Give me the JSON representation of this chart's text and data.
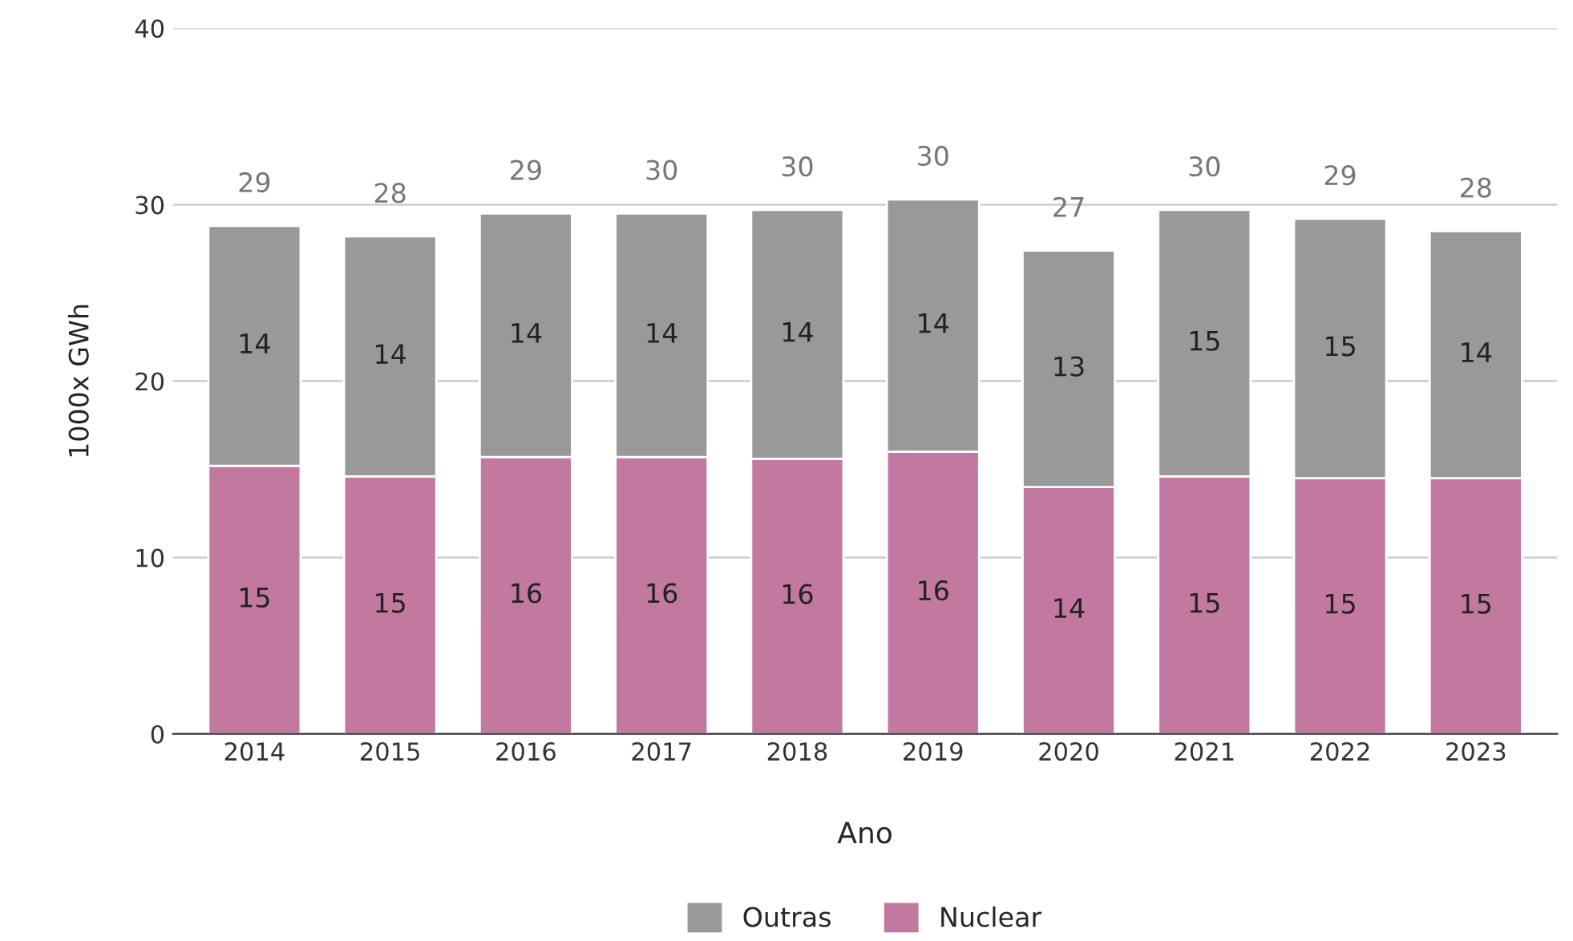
{
  "chart_data": {
    "type": "bar",
    "stacked": true,
    "xlabel": "Ano",
    "ylabel": "1000x GWh",
    "categories": [
      "2014",
      "2015",
      "2016",
      "2017",
      "2018",
      "2019",
      "2020",
      "2021",
      "2022",
      "2023"
    ],
    "series": [
      {
        "name": "Nuclear",
        "color": "#c2789f",
        "values": [
          15.2,
          14.6,
          15.7,
          15.7,
          15.6,
          16.0,
          14.0,
          14.6,
          14.5,
          14.5
        ],
        "value_labels": [
          "15",
          "15",
          "16",
          "16",
          "16",
          "16",
          "14",
          "15",
          "15",
          "15"
        ]
      },
      {
        "name": "Outras",
        "color": "#999999",
        "values": [
          13.6,
          13.6,
          13.8,
          13.8,
          14.1,
          14.3,
          13.4,
          15.1,
          14.7,
          14.0
        ],
        "value_labels": [
          "14",
          "14",
          "14",
          "14",
          "14",
          "14",
          "13",
          "15",
          "15",
          "14"
        ]
      }
    ],
    "totals": [
      "29",
      "28",
      "29",
      "30",
      "30",
      "30",
      "27",
      "30",
      "29",
      "28"
    ],
    "ylim": [
      0,
      40
    ],
    "yticks": [
      0,
      10,
      20,
      30,
      40
    ],
    "grid": "y",
    "legend": "bottom"
  }
}
